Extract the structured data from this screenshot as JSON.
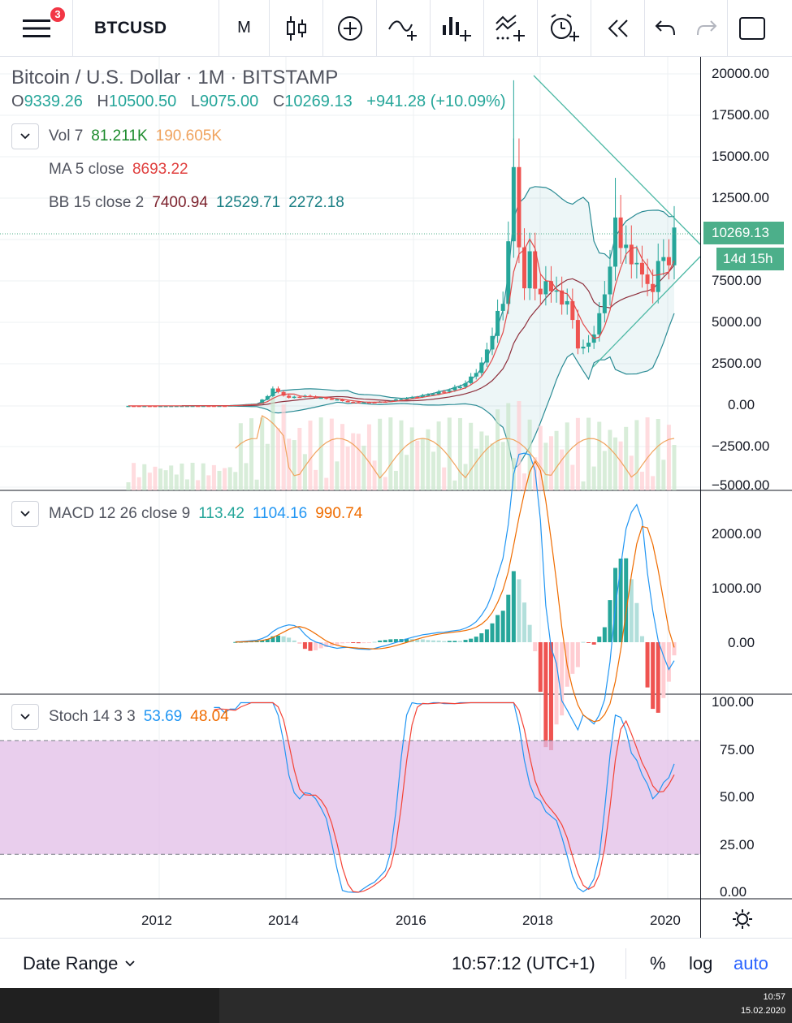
{
  "toolbar": {
    "menu_badge": "3",
    "symbol": "BTCUSD",
    "interval": "M",
    "icons": [
      "menu-icon",
      "candles-icon",
      "add-compare-icon",
      "indicators-icon",
      "financials-icon",
      "templates-icon",
      "alert-icon",
      "replay-icon",
      "undo-icon",
      "redo-icon",
      "fullscreen-icon"
    ]
  },
  "legend": {
    "title": "Bitcoin / U.S. Dollar · 1M · BITSTAMP",
    "o_label": "O",
    "o": "9339.26",
    "h_label": "H",
    "h": "10500.50",
    "l_label": "L",
    "l": "9075.00",
    "c_label": "C",
    "c": "10269.13",
    "change": "+941.28 (+10.09%)"
  },
  "indicators": {
    "vol": {
      "name": "Vol 7",
      "v1": "81.211K",
      "v2": "190.605K"
    },
    "ma": {
      "name": "MA 5 close",
      "v1": "8693.22"
    },
    "bb": {
      "name": "BB 15 close 2",
      "v1": "7400.94",
      "v2": "12529.71",
      "v3": "2272.18"
    },
    "macd": {
      "name": "MACD 12 26 close 9",
      "v1": "113.42",
      "v2": "1104.16",
      "v3": "990.74"
    },
    "stoch": {
      "name": "Stoch 14 3 3",
      "v1": "53.69",
      "v2": "48.04"
    }
  },
  "price_axis": [
    "20000.00",
    "17500.00",
    "15000.00",
    "12500.00",
    "7500.00",
    "5000.00",
    "2500.00",
    "0.00",
    "−2500.00",
    "−5000.00"
  ],
  "price_tag": "10269.13",
  "time_tag": "14d 15h",
  "macd_axis": [
    "2000.00",
    "1000.00",
    "0.00"
  ],
  "stoch_axis": [
    "100.00",
    "75.00",
    "50.00",
    "25.00",
    "0.00"
  ],
  "time_axis": [
    "2012",
    "2014",
    "2016",
    "2018",
    "2020"
  ],
  "bottom": {
    "date_range": "Date Range",
    "clock": "10:57:12 (UTC+1)",
    "percent": "%",
    "log": "log",
    "auto": "auto"
  },
  "taskbar": {
    "time": "10:57",
    "date": "15.02.2020"
  },
  "colors": {
    "up": "#26a69a",
    "down": "#ef5350",
    "vol_up": "#c8e6c9",
    "vol_down": "#ffcdd2",
    "ma": "#f44336",
    "bb_basis": "#880e4f",
    "bb_band": "#00838f",
    "macd": "#2196f3",
    "signal": "#ff6d00",
    "stoch_k": "#2196f3",
    "stoch_d": "#f44336",
    "stoch_band": "#e1bee7",
    "accent": "#2962ff"
  },
  "chart_data": {
    "type": "candlestick",
    "x_range": [
      "2011-08",
      "2020-02"
    ],
    "price_ylim": [
      -5000,
      20000
    ],
    "candles_key_points": [
      {
        "date": "2013-11",
        "close": 1100
      },
      {
        "date": "2015-01",
        "close": 220
      },
      {
        "date": "2017-06",
        "close": 2500
      },
      {
        "date": "2017-12",
        "close": 13800,
        "high": 19700
      },
      {
        "date": "2018-12",
        "close": 3700
      },
      {
        "date": "2019-06",
        "close": 10800,
        "high": 13800
      },
      {
        "date": "2020-02",
        "open": 9339.26,
        "high": 10500.5,
        "low": 9075.0,
        "close": 10269.13
      }
    ],
    "macd_ylim": [
      -800,
      2700
    ],
    "stoch_ylim": [
      0,
      100
    ],
    "stoch_bands": [
      20,
      80
    ]
  }
}
